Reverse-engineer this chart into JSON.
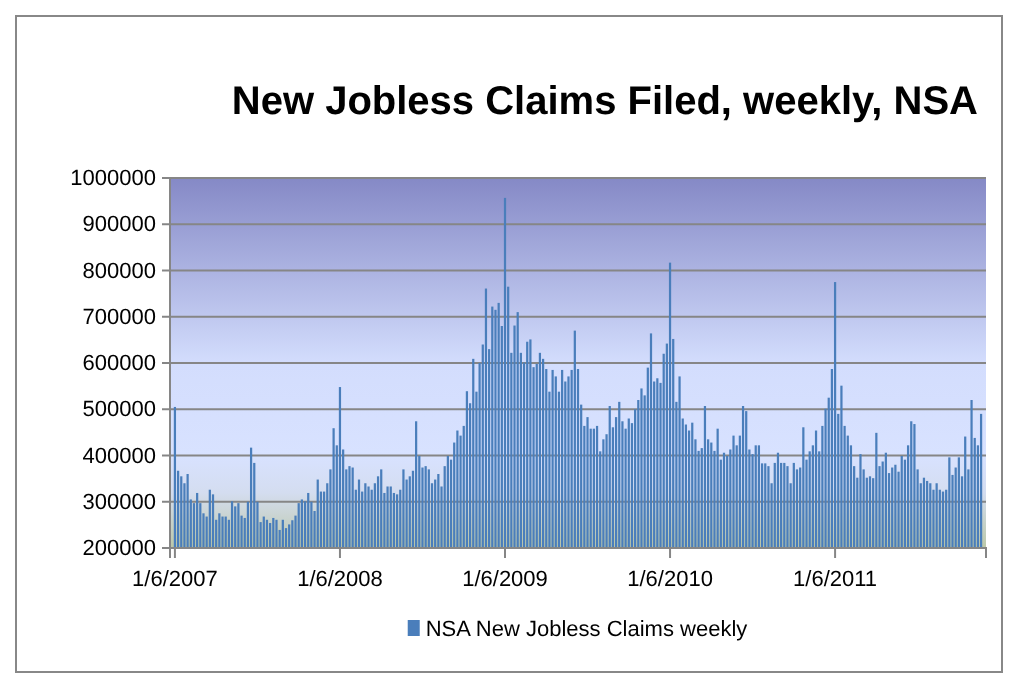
{
  "chart_data": {
    "type": "bar",
    "title": "New Jobless Claims Filed, weekly, NSA",
    "categories": [
      "1/6/2007",
      null,
      null,
      null,
      null,
      null,
      null,
      null,
      null,
      null,
      null,
      null,
      null,
      null,
      null,
      null,
      null,
      null,
      null,
      null,
      null,
      null,
      null,
      null,
      null,
      null,
      null,
      null,
      null,
      null,
      null,
      null,
      null,
      null,
      null,
      null,
      null,
      null,
      null,
      null,
      null,
      null,
      null,
      null,
      null,
      null,
      null,
      null,
      null,
      null,
      null,
      null,
      "1/6/2008",
      null,
      null,
      null,
      null,
      null,
      null,
      null,
      null,
      null,
      null,
      null,
      null,
      null,
      null,
      null,
      null,
      null,
      null,
      null,
      null,
      null,
      null,
      null,
      null,
      null,
      null,
      null,
      null,
      null,
      null,
      null,
      null,
      null,
      null,
      null,
      null,
      null,
      null,
      null,
      null,
      null,
      null,
      null,
      null,
      null,
      null,
      null,
      null,
      null,
      null,
      null,
      "1/6/2009",
      null,
      null,
      null,
      null,
      null,
      null,
      null,
      null,
      null,
      null,
      null,
      null,
      null,
      null,
      null,
      null,
      null,
      null,
      null,
      null,
      null,
      null,
      null,
      null,
      null,
      null,
      null,
      null,
      null,
      null,
      null,
      null,
      null,
      null,
      null,
      null,
      null,
      null,
      null,
      null,
      null,
      null,
      null,
      null,
      null,
      null,
      null,
      null,
      null,
      null,
      null,
      "1/6/2010",
      null,
      null,
      null,
      null,
      null,
      null,
      null,
      null,
      null,
      null,
      null,
      null,
      null,
      null,
      null,
      null,
      null,
      null,
      null,
      null,
      null,
      null,
      null,
      null,
      null,
      null,
      null,
      null,
      null,
      null,
      null,
      null,
      null,
      null,
      null,
      null,
      null,
      null,
      null,
      null,
      null,
      null,
      null,
      null,
      null,
      null,
      null,
      null,
      null,
      null,
      null,
      "1/6/2011",
      null,
      null,
      null,
      null,
      null,
      null,
      null,
      null,
      null,
      null,
      null,
      null,
      null,
      null,
      null,
      null,
      null,
      null,
      null,
      null,
      null,
      null,
      null,
      null,
      null,
      null,
      null,
      null,
      null,
      null,
      null,
      null,
      null,
      null,
      null,
      null,
      null,
      null,
      null,
      null,
      null,
      null,
      null,
      null,
      null,
      null
    ],
    "series": [
      {
        "name": "NSA New Jobless Claims weekly",
        "color": "#4a7ebb",
        "values": [
          505000,
          367000,
          355000,
          340000,
          360000,
          305000,
          297000,
          319000,
          297000,
          275000,
          268000,
          326000,
          316000,
          261000,
          275000,
          268000,
          268000,
          261000,
          301000,
          290000,
          297000,
          270000,
          265000,
          300000,
          417000,
          384000,
          300000,
          256000,
          268000,
          261000,
          254000,
          265000,
          261000,
          239000,
          261000,
          243000,
          251000,
          260000,
          270000,
          297000,
          305000,
          301000,
          319000,
          300000,
          280000,
          348000,
          322000,
          322000,
          340000,
          370000,
          459000,
          422000,
          548000,
          413000,
          370000,
          377000,
          374000,
          326000,
          348000,
          322000,
          340000,
          333000,
          326000,
          340000,
          355000,
          370000,
          319000,
          333000,
          333000,
          319000,
          316000,
          326000,
          370000,
          348000,
          355000,
          367000,
          474000,
          399000,
          374000,
          377000,
          370000,
          340000,
          348000,
          360000,
          333000,
          377000,
          399000,
          391000,
          428000,
          454000,
          443000,
          464000,
          539000,
          513000,
          609000,
          538000,
          600000,
          640000,
          761000,
          630000,
          722000,
          715000,
          730000,
          680000,
          957000,
          765000,
          622000,
          681000,
          710000,
          622000,
          601000,
          646000,
          651000,
          591000,
          598000,
          622000,
          609000,
          587000,
          538000,
          585000,
          571000,
          538000,
          585000,
          560000,
          571000,
          585000,
          670000,
          587000,
          510000,
          464000,
          483000,
          458000,
          458000,
          464000,
          409000,
          435000,
          446000,
          507000,
          461000,
          483000,
          516000,
          474000,
          458000,
          480000,
          470000,
          500000,
          520000,
          545000,
          530000,
          590000,
          664000,
          560000,
          567000,
          557000,
          620000,
          642000,
          817000,
          652000,
          516000,
          571000,
          480000,
          467000,
          454000,
          471000,
          435000,
          410000,
          416000,
          507000,
          435000,
          428000,
          410000,
          458000,
          391000,
          406000,
          399000,
          413000,
          443000,
          422000,
          443000,
          507000,
          496000,
          413000,
          403000,
          422000,
          422000,
          383000,
          383000,
          377000,
          340000,
          384000,
          406000,
          384000,
          384000,
          377000,
          340000,
          384000,
          370000,
          374000,
          461000,
          391000,
          409000,
          422000,
          454000,
          409000,
          464000,
          501000,
          525000,
          587000,
          775000,
          490000,
          551000,
          464000,
          443000,
          422000,
          377000,
          352000,
          403000,
          370000,
          352000,
          355000,
          351000,
          449000,
          377000,
          387000,
          406000,
          362000,
          374000,
          380000,
          365000,
          399000,
          391000,
          422000,
          474000,
          468000,
          370000,
          340000,
          352000,
          345000,
          340000,
          326000,
          340000,
          326000,
          322000,
          326000,
          396000,
          358000,
          374000,
          396000,
          355000,
          441000,
          370000,
          520000,
          438000,
          422000,
          490000
        ]
      }
    ],
    "ylim": [
      200000,
      1000000
    ],
    "yticks": [
      200000,
      300000,
      400000,
      500000,
      600000,
      700000,
      800000,
      900000,
      1000000
    ],
    "grid": "y",
    "legend": "bottom"
  }
}
